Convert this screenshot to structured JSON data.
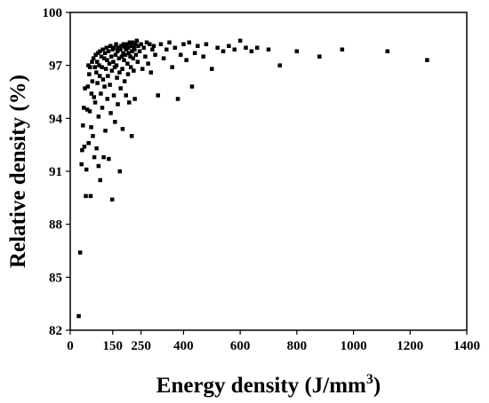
{
  "chart_data": {
    "type": "scatter",
    "title": "",
    "xlabel": "Energy density (J/mm",
    "xlabel_superscript": "3",
    "xlabel_suffix": ")",
    "ylabel": "Relative density (%)",
    "xlim": [
      0,
      1400
    ],
    "ylim": [
      82,
      100
    ],
    "xticks": [
      {
        "value": 0,
        "label": "0"
      },
      {
        "value": 150,
        "label": "150"
      },
      {
        "value": 250,
        "label": "250"
      },
      {
        "value": 400,
        "label": "400"
      },
      {
        "value": 600,
        "label": "600"
      },
      {
        "value": 800,
        "label": "800"
      },
      {
        "value": 1000,
        "label": "1000"
      },
      {
        "value": 1200,
        "label": "1200"
      },
      {
        "value": 1400,
        "label": "1400"
      }
    ],
    "yticks": [
      {
        "value": 82,
        "label": "82"
      },
      {
        "value": 85,
        "label": "85"
      },
      {
        "value": 88,
        "label": "88"
      },
      {
        "value": 91,
        "label": "91"
      },
      {
        "value": 94,
        "label": "94"
      },
      {
        "value": 97,
        "label": "97"
      },
      {
        "value": 100,
        "label": "100"
      }
    ],
    "grid": false,
    "marker": "square",
    "marker_color": "#000000",
    "series": [
      {
        "points": [
          [
            30,
            82.8
          ],
          [
            35,
            86.4
          ],
          [
            40,
            91.4
          ],
          [
            42,
            92.2
          ],
          [
            45,
            93.6
          ],
          [
            48,
            94.6
          ],
          [
            50,
            92.4
          ],
          [
            52,
            95.7
          ],
          [
            55,
            89.6
          ],
          [
            57,
            91.1
          ],
          [
            60,
            94.5
          ],
          [
            62,
            95.8
          ],
          [
            64,
            97.0
          ],
          [
            65,
            92.6
          ],
          [
            67,
            96.5
          ],
          [
            69,
            94.4
          ],
          [
            70,
            96.9
          ],
          [
            72,
            89.6
          ],
          [
            74,
            93.5
          ],
          [
            75,
            95.4
          ],
          [
            77,
            97.2
          ],
          [
            78,
            96.1
          ],
          [
            80,
            93.0
          ],
          [
            82,
            97.4
          ],
          [
            84,
            95.2
          ],
          [
            85,
            91.8
          ],
          [
            87,
            96.9
          ],
          [
            88,
            94.9
          ],
          [
            90,
            97.6
          ],
          [
            92,
            96.6
          ],
          [
            93,
            92.3
          ],
          [
            95,
            97.2
          ],
          [
            96,
            96.0
          ],
          [
            98,
            97.7
          ],
          [
            100,
            94.1
          ],
          [
            100,
            91.3
          ],
          [
            102,
            97.0
          ],
          [
            104,
            96.4
          ],
          [
            105,
            97.8
          ],
          [
            106,
            90.5
          ],
          [
            108,
            95.4
          ],
          [
            110,
            97.5
          ],
          [
            112,
            96.9
          ],
          [
            113,
            94.6
          ],
          [
            115,
            97.9
          ],
          [
            116,
            96.2
          ],
          [
            118,
            91.8
          ],
          [
            120,
            97.4
          ],
          [
            121,
            95.8
          ],
          [
            123,
            97.7
          ],
          [
            124,
            93.3
          ],
          [
            126,
            96.8
          ],
          [
            128,
            98.0
          ],
          [
            130,
            97.3
          ],
          [
            131,
            95.1
          ],
          [
            133,
            96.4
          ],
          [
            135,
            97.8
          ],
          [
            136,
            91.7
          ],
          [
            138,
            97.1
          ],
          [
            140,
            95.9
          ],
          [
            142,
            98.1
          ],
          [
            143,
            94.3
          ],
          [
            145,
            97.5
          ],
          [
            147,
            96.7
          ],
          [
            148,
            89.4
          ],
          [
            150,
            97.9
          ],
          [
            152,
            97.2
          ],
          [
            154,
            95.3
          ],
          [
            155,
            98.0
          ],
          [
            157,
            96.9
          ],
          [
            158,
            93.8
          ],
          [
            160,
            97.6
          ],
          [
            162,
            98.2
          ],
          [
            163,
            97.0
          ],
          [
            165,
            96.3
          ],
          [
            167,
            97.8
          ],
          [
            168,
            94.8
          ],
          [
            170,
            98.0
          ],
          [
            172,
            97.4
          ],
          [
            174,
            96.6
          ],
          [
            175,
            91.0
          ],
          [
            177,
            97.9
          ],
          [
            178,
            95.7
          ],
          [
            180,
            98.1
          ],
          [
            182,
            97.5
          ],
          [
            184,
            96.8
          ],
          [
            185,
            93.4
          ],
          [
            187,
            97.7
          ],
          [
            188,
            98.2
          ],
          [
            190,
            97.3
          ],
          [
            192,
            96.1
          ],
          [
            194,
            98.0
          ],
          [
            195,
            97.6
          ],
          [
            197,
            95.3
          ],
          [
            198,
            97.9
          ],
          [
            200,
            98.2
          ],
          [
            202,
            97.1
          ],
          [
            204,
            96.5
          ],
          [
            205,
            98.0
          ],
          [
            207,
            97.7
          ],
          [
            208,
            94.9
          ],
          [
            210,
            98.3
          ],
          [
            212,
            97.5
          ],
          [
            214,
            96.9
          ],
          [
            215,
            98.1
          ],
          [
            217,
            93.0
          ],
          [
            218,
            97.8
          ],
          [
            220,
            98.3
          ],
          [
            222,
            97.4
          ],
          [
            224,
            96.7
          ],
          [
            225,
            98.0
          ],
          [
            227,
            97.9
          ],
          [
            228,
            95.1
          ],
          [
            230,
            98.2
          ],
          [
            232,
            97.6
          ],
          [
            235,
            98.4
          ],
          [
            238,
            97.2
          ],
          [
            240,
            98.1
          ],
          [
            245,
            97.8
          ],
          [
            250,
            98.2
          ],
          [
            255,
            96.8
          ],
          [
            260,
            98.0
          ],
          [
            265,
            97.5
          ],
          [
            270,
            98.3
          ],
          [
            275,
            97.1
          ],
          [
            280,
            98.2
          ],
          [
            285,
            96.6
          ],
          [
            290,
            97.9
          ],
          [
            295,
            98.1
          ],
          [
            300,
            97.6
          ],
          [
            310,
            95.3
          ],
          [
            320,
            98.2
          ],
          [
            330,
            97.4
          ],
          [
            340,
            97.9
          ],
          [
            350,
            98.3
          ],
          [
            360,
            96.9
          ],
          [
            370,
            98.0
          ],
          [
            380,
            95.1
          ],
          [
            390,
            97.6
          ],
          [
            400,
            98.2
          ],
          [
            410,
            97.3
          ],
          [
            420,
            98.3
          ],
          [
            430,
            95.8
          ],
          [
            440,
            97.7
          ],
          [
            450,
            98.1
          ],
          [
            470,
            97.5
          ],
          [
            480,
            98.2
          ],
          [
            500,
            96.8
          ],
          [
            520,
            98.0
          ],
          [
            540,
            97.8
          ],
          [
            560,
            98.1
          ],
          [
            580,
            97.9
          ],
          [
            600,
            98.4
          ],
          [
            620,
            98.0
          ],
          [
            640,
            97.8
          ],
          [
            660,
            98.0
          ],
          [
            700,
            97.9
          ],
          [
            740,
            97.0
          ],
          [
            800,
            97.8
          ],
          [
            880,
            97.5
          ],
          [
            960,
            97.9
          ],
          [
            1120,
            97.8
          ],
          [
            1260,
            97.3
          ]
        ]
      }
    ]
  }
}
